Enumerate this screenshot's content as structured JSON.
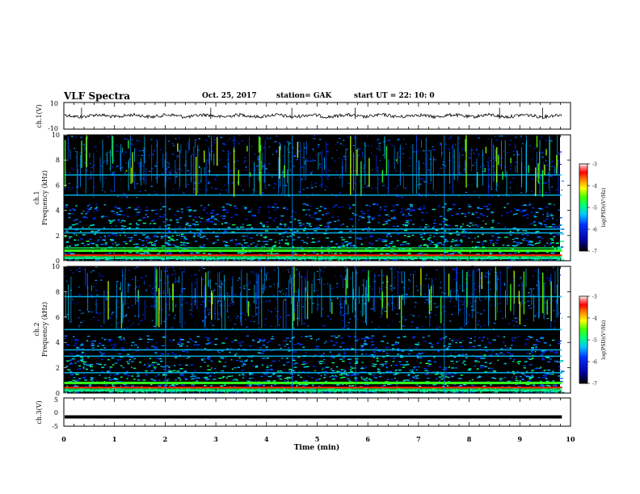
{
  "header": {
    "title": "VLF Spectra",
    "date": "Oct. 25, 2017",
    "station": "station= GAK",
    "start": "start  UT  =   22: 10: 0"
  },
  "chart_data": [
    {
      "type": "line",
      "panel": "ch1-waveform",
      "ylabel": "ch.1(V)",
      "ylim": [
        -10,
        10
      ],
      "yticks": [
        "10",
        "-10"
      ],
      "series_level": 0,
      "xlim": [
        0,
        10
      ]
    },
    {
      "type": "heatmap",
      "panel": "ch1-spectrogram",
      "ylabel_line1": "ch.1",
      "ylabel_line2": "Frequency  (kHz)",
      "ylim": [
        0,
        10
      ],
      "yticks": [
        "0",
        "2",
        "4",
        "6",
        "8",
        "10"
      ],
      "xlim": [
        0,
        9.83
      ],
      "colorbar": {
        "label": "log(PSD)(V²/Hz)",
        "range": [
          -7,
          -3
        ],
        "ticks": [
          "-3",
          "-4",
          "-5",
          "-6",
          "-7"
        ]
      },
      "bands_khz": [
        0.3,
        1.0,
        2.2,
        2.5,
        5.2,
        6.8
      ]
    },
    {
      "type": "heatmap",
      "panel": "ch2-spectrogram",
      "ylabel_line1": "ch.2",
      "ylabel_line2": "Frequency  (kHz)",
      "ylim": [
        0,
        10
      ],
      "yticks": [
        "0",
        "2",
        "4",
        "6",
        "8",
        "10"
      ],
      "xlim": [
        0,
        9.83
      ],
      "colorbar": {
        "label": "log(PSD)(V²/Hz)",
        "range": [
          -7,
          -3
        ],
        "ticks": [
          "-3",
          "-4",
          "-5",
          "-6",
          "-7"
        ]
      },
      "bands_khz": [
        0.3,
        1.6,
        2.9,
        3.4,
        5.0,
        7.6
      ]
    },
    {
      "type": "line",
      "panel": "ch3-waveform",
      "ylabel": "ch.3(V)",
      "ylim": [
        -5,
        5
      ],
      "yticks": [
        "5",
        "0",
        "-5"
      ],
      "series_level": -1.7,
      "xlim": [
        0,
        9.83
      ],
      "xlabel": "Time  (min)",
      "xticks": [
        "0",
        "1",
        "2",
        "3",
        "4",
        "5",
        "6",
        "7",
        "8",
        "9",
        "10"
      ],
      "xlim_axis": [
        0,
        10
      ]
    }
  ]
}
